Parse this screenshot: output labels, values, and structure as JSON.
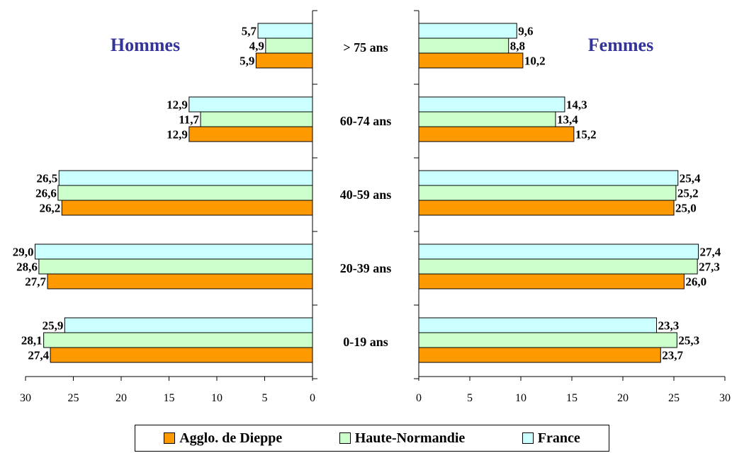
{
  "chart_data": {
    "type": "bar",
    "orientation": "horizontal",
    "layout": "population-pyramid",
    "categories": [
      "> 75 ans",
      "60-74 ans",
      "40-59 ans",
      "20-39 ans",
      "0-19 ans"
    ],
    "series_colors": {
      "Agglo. de Dieppe": "#ff9900",
      "Haute-Normandie": "#ccffcc",
      "France": "#ccffff"
    },
    "panels": [
      {
        "title": "Hommes",
        "title_color": "#333399",
        "direction": "left",
        "xlim": [
          0,
          30
        ],
        "ticks": [
          "30",
          "25",
          "20",
          "15",
          "10",
          "5",
          "0"
        ],
        "series": [
          {
            "name": "France",
            "values": [
              5.7,
              12.9,
              26.5,
              29.0,
              25.9
            ],
            "labels": [
              "5,7",
              "12,9",
              "26,5",
              "29,0",
              "25,9"
            ]
          },
          {
            "name": "Haute-Normandie",
            "values": [
              4.9,
              11.7,
              26.6,
              28.6,
              28.1
            ],
            "labels": [
              "4,9",
              "11,7",
              "26,6",
              "28,6",
              "28,1"
            ]
          },
          {
            "name": "Agglo. de Dieppe",
            "values": [
              5.9,
              12.9,
              26.2,
              27.7,
              27.4
            ],
            "labels": [
              "5,9",
              "12,9",
              "26,2",
              "27,7",
              "27,4"
            ]
          }
        ]
      },
      {
        "title": "Femmes",
        "title_color": "#333399",
        "direction": "right",
        "xlim": [
          0,
          30
        ],
        "ticks": [
          "0",
          "5",
          "10",
          "15",
          "20",
          "25",
          "30"
        ],
        "series": [
          {
            "name": "France",
            "values": [
              9.6,
              14.3,
              25.4,
              27.4,
              23.3
            ],
            "labels": [
              "9,6",
              "14,3",
              "25,4",
              "27,4",
              "23,3"
            ]
          },
          {
            "name": "Haute-Normandie",
            "values": [
              8.8,
              13.4,
              25.2,
              27.3,
              25.3
            ],
            "labels": [
              "8,8",
              "13,4",
              "25,2",
              "27,3",
              "25,3"
            ]
          },
          {
            "name": "Agglo. de Dieppe",
            "values": [
              10.2,
              15.2,
              25.0,
              26.0,
              23.7
            ],
            "labels": [
              "10,2",
              "15,2",
              "25,0",
              "26,0",
              "23,7"
            ]
          }
        ]
      }
    ],
    "legend": {
      "placement": "bottom",
      "items": [
        {
          "label": "Agglo. de Dieppe",
          "color": "#ff9900"
        },
        {
          "label": "Haute-Normandie",
          "color": "#ccffcc"
        },
        {
          "label": "France",
          "color": "#ccffff"
        }
      ]
    }
  }
}
